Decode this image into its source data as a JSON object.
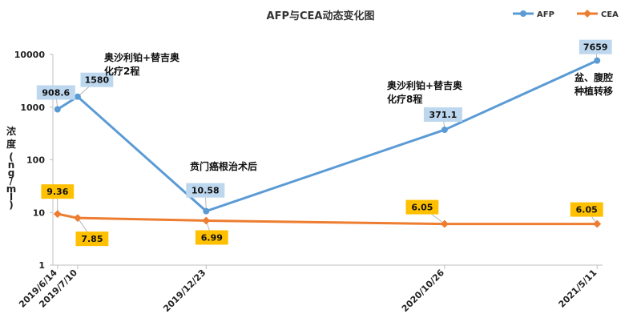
{
  "chart_data": {
    "type": "line",
    "title": "AFP与CEA动态变化图",
    "ylabel_chars": [
      "浓",
      "度",
      "(",
      "n",
      "g",
      "/",
      "m",
      "l",
      ")"
    ],
    "y_scale": "log",
    "ylim": [
      1,
      10000
    ],
    "y_ticks": [
      "1",
      "10",
      "100",
      "1000",
      "10000"
    ],
    "x_ticks": [
      "2019/6/14",
      "2019/7/10",
      "2019/12/23",
      "2020/10/26",
      "2021/5/11"
    ],
    "x_range": [
      "2019/6/8",
      "2021/5/18"
    ],
    "legend_position": "top-right",
    "grid": false,
    "series": [
      {
        "name": "AFP",
        "color": "#5B9BD5",
        "label_bg": "#BDD7EE",
        "points": [
          {
            "x": "2019/6/14",
            "y": 908.6,
            "label": "908.6"
          },
          {
            "x": "2019/7/10",
            "y": 1580,
            "label": "1580"
          },
          {
            "x": "2019/12/23",
            "y": 10.58,
            "label": "10.58"
          },
          {
            "x": "2020/10/26",
            "y": 371.1,
            "label": "371.1"
          },
          {
            "x": "2021/5/11",
            "y": 7659,
            "label": "7659"
          }
        ]
      },
      {
        "name": "CEA",
        "color": "#ED7D31",
        "label_bg": "#FFC000",
        "points": [
          {
            "x": "2019/6/14",
            "y": 9.36,
            "label": "9.36"
          },
          {
            "x": "2019/7/10",
            "y": 7.85,
            "label": "7.85"
          },
          {
            "x": "2019/12/23",
            "y": 6.99,
            "label": "6.99"
          },
          {
            "x": "2020/10/26",
            "y": 6.05,
            "label": "6.05"
          },
          {
            "x": "2021/5/11",
            "y": 6.05,
            "label": "6.05"
          }
        ]
      }
    ],
    "annotations": [
      {
        "lines": [
          "奥沙利铂+替吉奥",
          "化疗2程"
        ]
      },
      {
        "lines": [
          "贲门癌根治术后"
        ]
      },
      {
        "lines": [
          "奥沙利铂+替吉奥",
          "化疗8程"
        ]
      },
      {
        "lines": [
          "盆、腹腔",
          "种植转移"
        ]
      }
    ]
  }
}
